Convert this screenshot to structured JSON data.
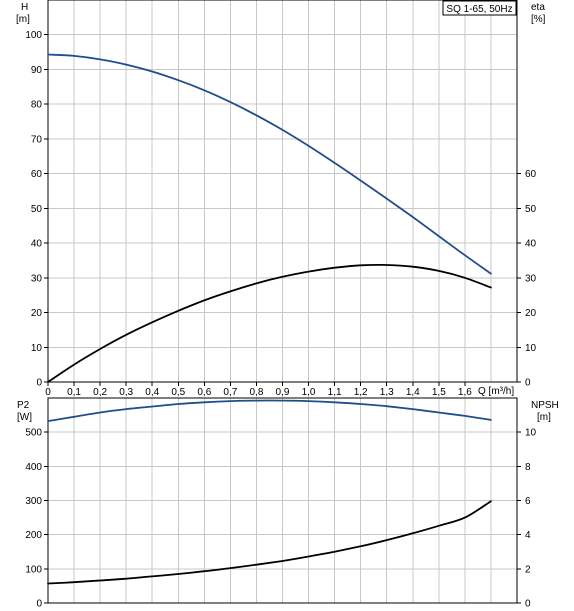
{
  "chart_data": [
    {
      "type": "line",
      "title": "SQ 1-65, 50Hz",
      "xlabel": "Q [m³/h]",
      "x_ticks": [
        "0",
        "0,1",
        "0,2",
        "0,3",
        "0,4",
        "0,5",
        "0,6",
        "0,7",
        "0,8",
        "0,9",
        "1,0",
        "1,1",
        "1,2",
        "1,3",
        "1,4",
        "1,5",
        "1,6"
      ],
      "xlim": [
        0,
        1.8
      ],
      "left_axis": {
        "label": "H",
        "unit": "[m]",
        "ticks": [
          "0",
          "10",
          "20",
          "30",
          "40",
          "50",
          "60",
          "70",
          "80",
          "90",
          "100"
        ],
        "ylim": [
          0,
          110
        ]
      },
      "right_axis": {
        "label": "eta",
        "unit": "[%]",
        "ticks": [
          "0",
          "10",
          "20",
          "30",
          "40",
          "50",
          "60"
        ],
        "ylim": [
          0,
          110
        ]
      },
      "grid": true,
      "series": [
        {
          "name": "H",
          "axis": "left",
          "color": "#1f4e8c",
          "x": [
            0,
            0.1,
            0.2,
            0.3,
            0.4,
            0.5,
            0.6,
            0.7,
            0.8,
            0.9,
            1.0,
            1.1,
            1.2,
            1.3,
            1.4,
            1.5,
            1.6,
            1.7
          ],
          "y": [
            94.3,
            93.9,
            92.9,
            91.4,
            89.4,
            86.9,
            84.0,
            80.6,
            76.8,
            72.6,
            68.0,
            63.1,
            58.0,
            52.8,
            47.5,
            42.0,
            36.5,
            31.2
          ]
        },
        {
          "name": "eta",
          "axis": "right",
          "color": "#000000",
          "x": [
            0,
            0.1,
            0.2,
            0.3,
            0.4,
            0.5,
            0.6,
            0.7,
            0.8,
            0.9,
            1.0,
            1.1,
            1.2,
            1.3,
            1.4,
            1.5,
            1.6,
            1.7
          ],
          "y": [
            0,
            5.0,
            9.5,
            13.6,
            17.2,
            20.5,
            23.5,
            26.1,
            28.4,
            30.3,
            31.8,
            32.9,
            33.6,
            33.7,
            33.2,
            32.0,
            30.0,
            27.2
          ]
        }
      ]
    },
    {
      "type": "line",
      "title": "",
      "xlabel": "",
      "xlim": [
        0,
        1.8
      ],
      "left_axis": {
        "label": "P2",
        "unit": "[W]",
        "ticks": [
          "0",
          "100",
          "200",
          "300",
          "400",
          "500"
        ],
        "ylim": [
          0,
          600
        ]
      },
      "right_axis": {
        "label": "NPSH",
        "unit": "[m]",
        "ticks": [
          "0",
          "2",
          "4",
          "6",
          "8",
          "10"
        ],
        "ylim": [
          0,
          12
        ]
      },
      "grid": true,
      "series": [
        {
          "name": "P2",
          "axis": "left",
          "color": "#000000",
          "x": [
            0,
            0.1,
            0.2,
            0.3,
            0.4,
            0.5,
            0.6,
            0.7,
            0.8,
            0.9,
            1.0,
            1.1,
            1.2,
            1.3,
            1.4,
            1.5,
            1.6,
            1.7
          ],
          "y": [
            57,
            61,
            66,
            71,
            78,
            85,
            93,
            102,
            112,
            123,
            136,
            150,
            166,
            184,
            204,
            226,
            250,
            298
          ]
        },
        {
          "name": "NPSH",
          "axis": "right",
          "color": "#1f4e8c",
          "x": [
            0,
            0.1,
            0.2,
            0.3,
            0.4,
            0.5,
            0.6,
            0.7,
            0.8,
            0.9,
            1.0,
            1.1,
            1.2,
            1.3,
            1.4,
            1.5,
            1.6,
            1.7
          ],
          "y": [
            10.65,
            10.9,
            11.15,
            11.35,
            11.5,
            11.65,
            11.75,
            11.82,
            11.85,
            11.85,
            11.82,
            11.75,
            11.65,
            11.52,
            11.35,
            11.15,
            10.95,
            10.72
          ]
        }
      ]
    }
  ]
}
